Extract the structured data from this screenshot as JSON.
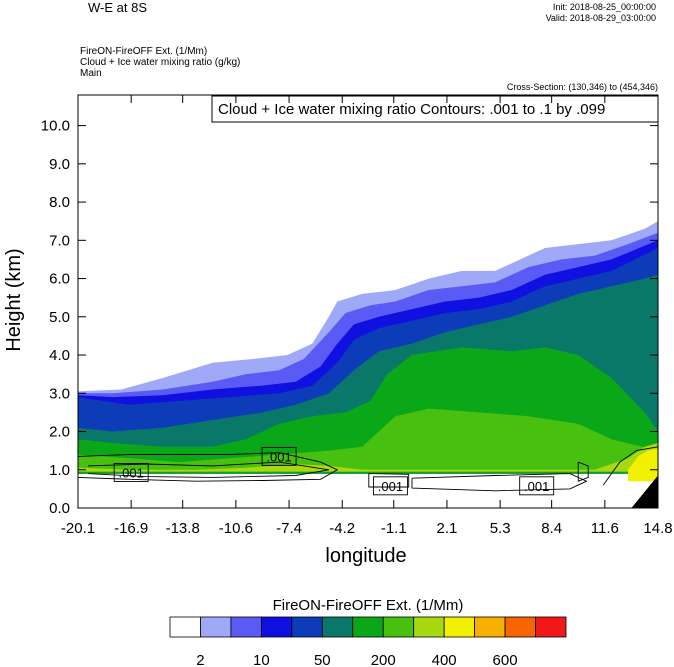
{
  "header": {
    "title": "W-E at 8S",
    "init": "Init: 2018-08-25_00:00:00",
    "valid": "Valid: 2018-08-29_03:00:00",
    "subtitle_lines": [
      "FireON-FireOFF Ext.   (1/Mm)",
      "Cloud + Ice water mixing ratio   (g/kg)",
      "Main"
    ],
    "cross_section": "Cross-Section: (130,346) to (454,346)"
  },
  "chart_data": {
    "type": "contour",
    "contour_label": "Cloud + Ice water mixing ratio Contours: .001 to .1 by .099",
    "xlabel": "longitude",
    "ylabel": "Height (km)",
    "x_ticks": [
      "-20.1",
      "-16.9",
      "-13.8",
      "-10.6",
      "-7.4",
      "-4.2",
      "-1.1",
      "2.1",
      "5.3",
      "8.4",
      "11.6",
      "14.8"
    ],
    "y_ticks": [
      "0.0",
      "1.0",
      "2.0",
      "3.0",
      "4.0",
      "5.0",
      "6.0",
      "7.0",
      "8.0",
      "9.0",
      "10.0"
    ],
    "xlim": [
      -20.1,
      14.8
    ],
    "ylim": [
      0,
      10.8
    ],
    "contour_line_labels": [
      ".001",
      ".001",
      ".001",
      ".001"
    ],
    "colorbar": {
      "title": "FireON-FireOFF Ext.  (1/Mm)",
      "tick_labels": [
        "2",
        "10",
        "50",
        "200",
        "400",
        "600"
      ],
      "colors": [
        "#ffffff",
        "#a0a8f8",
        "#5a5af4",
        "#1010e0",
        "#0c3cb8",
        "#0a7868",
        "#0aa818",
        "#48c010",
        "#a8d810",
        "#f0f000",
        "#f8b000",
        "#f86400",
        "#f01818"
      ]
    },
    "fill_regions": [
      {
        "name": "level-2",
        "color": "#a0a8f8",
        "top": [
          [
            -20.1,
            3.05
          ],
          [
            -17.5,
            3.1
          ],
          [
            -15,
            3.4
          ],
          [
            -12,
            3.8
          ],
          [
            -9.5,
            3.9
          ],
          [
            -7.5,
            4.0
          ],
          [
            -6,
            4.3
          ],
          [
            -5,
            5.0
          ],
          [
            -4.5,
            5.4
          ],
          [
            -3,
            5.6
          ],
          [
            -1,
            5.7
          ],
          [
            1,
            6.0
          ],
          [
            3,
            6.2
          ],
          [
            5,
            6.2
          ],
          [
            7,
            6.6
          ],
          [
            8,
            6.8
          ],
          [
            10,
            6.9
          ],
          [
            12,
            7.0
          ],
          [
            14,
            7.3
          ],
          [
            14.8,
            7.5
          ]
        ],
        "bottom": 0.9
      },
      {
        "name": "level-10",
        "color": "#5a5af4",
        "top": [
          [
            -20.1,
            3.0
          ],
          [
            -18,
            3.0
          ],
          [
            -15,
            3.1
          ],
          [
            -12,
            3.3
          ],
          [
            -10,
            3.5
          ],
          [
            -8,
            3.6
          ],
          [
            -6.5,
            3.9
          ],
          [
            -5,
            4.6
          ],
          [
            -4,
            5.1
          ],
          [
            -2.5,
            5.3
          ],
          [
            -1,
            5.4
          ],
          [
            1,
            5.7
          ],
          [
            3,
            5.8
          ],
          [
            5,
            5.9
          ],
          [
            7,
            6.3
          ],
          [
            9,
            6.5
          ],
          [
            11,
            6.6
          ],
          [
            13,
            6.9
          ],
          [
            14.8,
            7.2
          ]
        ],
        "bottom": 0.9
      },
      {
        "name": "level-50",
        "color": "#1010e0",
        "top": [
          [
            -20.1,
            2.95
          ],
          [
            -18,
            2.9
          ],
          [
            -15,
            2.95
          ],
          [
            -12,
            3.1
          ],
          [
            -9,
            3.2
          ],
          [
            -7,
            3.3
          ],
          [
            -5.5,
            3.7
          ],
          [
            -4.5,
            4.3
          ],
          [
            -3.5,
            4.8
          ],
          [
            -2,
            5.0
          ],
          [
            0,
            5.2
          ],
          [
            2,
            5.4
          ],
          [
            4,
            5.5
          ],
          [
            6,
            5.7
          ],
          [
            8,
            6.1
          ],
          [
            10,
            6.3
          ],
          [
            12,
            6.5
          ],
          [
            14.8,
            7.0
          ]
        ],
        "bottom": 0.9
      },
      {
        "name": "level-100",
        "color": "#0c3cb8",
        "top": [
          [
            -20.1,
            2.9
          ],
          [
            -17,
            2.7
          ],
          [
            -14,
            2.8
          ],
          [
            -11,
            2.9
          ],
          [
            -8,
            3.0
          ],
          [
            -6,
            3.2
          ],
          [
            -4.5,
            3.8
          ],
          [
            -3.5,
            4.4
          ],
          [
            -2,
            4.7
          ],
          [
            0,
            4.9
          ],
          [
            2,
            5.1
          ],
          [
            4,
            5.2
          ],
          [
            6,
            5.4
          ],
          [
            8,
            5.8
          ],
          [
            10,
            6.0
          ],
          [
            12,
            6.2
          ],
          [
            14.8,
            6.8
          ]
        ],
        "bottom": 0.9
      },
      {
        "name": "level-150",
        "color": "#0a7868",
        "top": [
          [
            -20.1,
            2.1
          ],
          [
            -18,
            2.0
          ],
          [
            -15,
            2.1
          ],
          [
            -12,
            2.3
          ],
          [
            -9,
            2.5
          ],
          [
            -7,
            2.7
          ],
          [
            -5,
            3.0
          ],
          [
            -3.5,
            3.6
          ],
          [
            -2,
            4.1
          ],
          [
            0,
            4.3
          ],
          [
            2,
            4.6
          ],
          [
            4,
            4.8
          ],
          [
            6,
            5.0
          ],
          [
            8,
            5.3
          ],
          [
            10,
            5.6
          ],
          [
            12,
            5.8
          ],
          [
            14,
            6.0
          ],
          [
            14.8,
            6.1
          ]
        ],
        "bottom": 0.9
      },
      {
        "name": "level-200",
        "color": "#0aa818",
        "top": [
          [
            -20.1,
            1.8
          ],
          [
            -18,
            1.7
          ],
          [
            -15,
            1.6
          ],
          [
            -12,
            1.6
          ],
          [
            -10,
            1.8
          ],
          [
            -8,
            2.2
          ],
          [
            -6,
            2.4
          ],
          [
            -4,
            2.5
          ],
          [
            -2.5,
            2.8
          ],
          [
            -1.5,
            3.5
          ],
          [
            0,
            4.0
          ],
          [
            3,
            4.2
          ],
          [
            6,
            4.1
          ],
          [
            8,
            4.2
          ],
          [
            10,
            4.0
          ],
          [
            12,
            3.4
          ],
          [
            14,
            2.5
          ],
          [
            14.8,
            2.0
          ]
        ],
        "bottom": 0.9
      },
      {
        "name": "level-300",
        "color": "#48c010",
        "top": [
          [
            -20.1,
            1.4
          ],
          [
            -17,
            1.3
          ],
          [
            -14,
            1.2
          ],
          [
            -11,
            1.3
          ],
          [
            -8,
            1.4
          ],
          [
            -5,
            1.5
          ],
          [
            -3,
            1.6
          ],
          [
            -1,
            2.4
          ],
          [
            1,
            2.6
          ],
          [
            4,
            2.5
          ],
          [
            7,
            2.4
          ],
          [
            10,
            2.2
          ],
          [
            12,
            1.8
          ],
          [
            14.8,
            1.5
          ]
        ],
        "bottom": 0.95
      },
      {
        "name": "level-400",
        "color": "#a8d810",
        "top": [
          [
            -20.1,
            1.05
          ],
          [
            -17,
            1.0
          ],
          [
            -13,
            1.0
          ],
          [
            -10,
            1.05
          ],
          [
            -7,
            1.15
          ],
          [
            -5,
            1.1
          ],
          [
            -3,
            1.0
          ],
          [
            11,
            1.0
          ],
          [
            13,
            1.3
          ],
          [
            14,
            1.6
          ],
          [
            14.8,
            1.7
          ]
        ],
        "bottom": 0.95
      },
      {
        "name": "level-500",
        "color": "#f0f000",
        "top": [
          [
            13.0,
            1.0
          ],
          [
            13.6,
            1.35
          ],
          [
            14.2,
            1.5
          ],
          [
            14.8,
            1.55
          ]
        ],
        "bottom": 0.7
      }
    ],
    "white_gaps": [
      {
        "x": [
          -2.6,
          9.4
        ],
        "top": 0.75
      },
      {
        "x": [
          -20.1,
          -2.6
        ],
        "top": 0.72
      }
    ]
  }
}
